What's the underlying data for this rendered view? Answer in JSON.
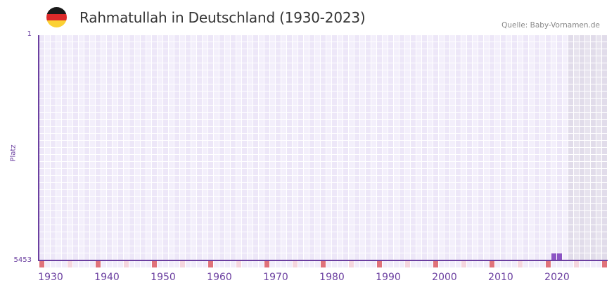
{
  "header": {
    "title": "Rahmatullah in Deutschland (1930-2023)",
    "source": "Quelle: Baby-Vornamen.de",
    "flag_icon": "germany-flag-icon",
    "flag_colors": [
      "#1a1a1a",
      "#dd2a2a",
      "#fbd134"
    ]
  },
  "colors": {
    "axis": "#6b3fa0",
    "bar": "#8c55c4",
    "cell_a": "#ede7f8",
    "cell_b": "#f3effb",
    "cell_future_a": "#e1dcea",
    "cell_future_b": "#e7e3ee",
    "marker_decade": "#e0727a",
    "marker_half": "#f5d6de",
    "marker_other": "#f1edfa"
  },
  "chart_data": {
    "type": "bar",
    "title": "Rahmatullah in Deutschland (1930-2023)",
    "subtitle": "Quelle: Baby-Vornamen.de",
    "xlabel": "",
    "ylabel": "Platz",
    "y_axis_inverted": true,
    "ylim": [
      1,
      5453
    ],
    "y_ticks": [
      "1",
      "5453"
    ],
    "x_ticks": [
      "1930",
      "1940",
      "1950",
      "1960",
      "1970",
      "1980",
      "1990",
      "2000",
      "2010",
      "2020"
    ],
    "x_range": [
      1928,
      2028
    ],
    "no_data_from_year": 2022,
    "grid": true,
    "legend": null,
    "categories": [
      2019,
      2020
    ],
    "values": [
      5453,
      5453
    ],
    "series": [
      {
        "name": "Platz",
        "points": [
          {
            "year": 2019,
            "rank": 5453
          },
          {
            "year": 2020,
            "rank": 5453
          }
        ]
      }
    ]
  }
}
